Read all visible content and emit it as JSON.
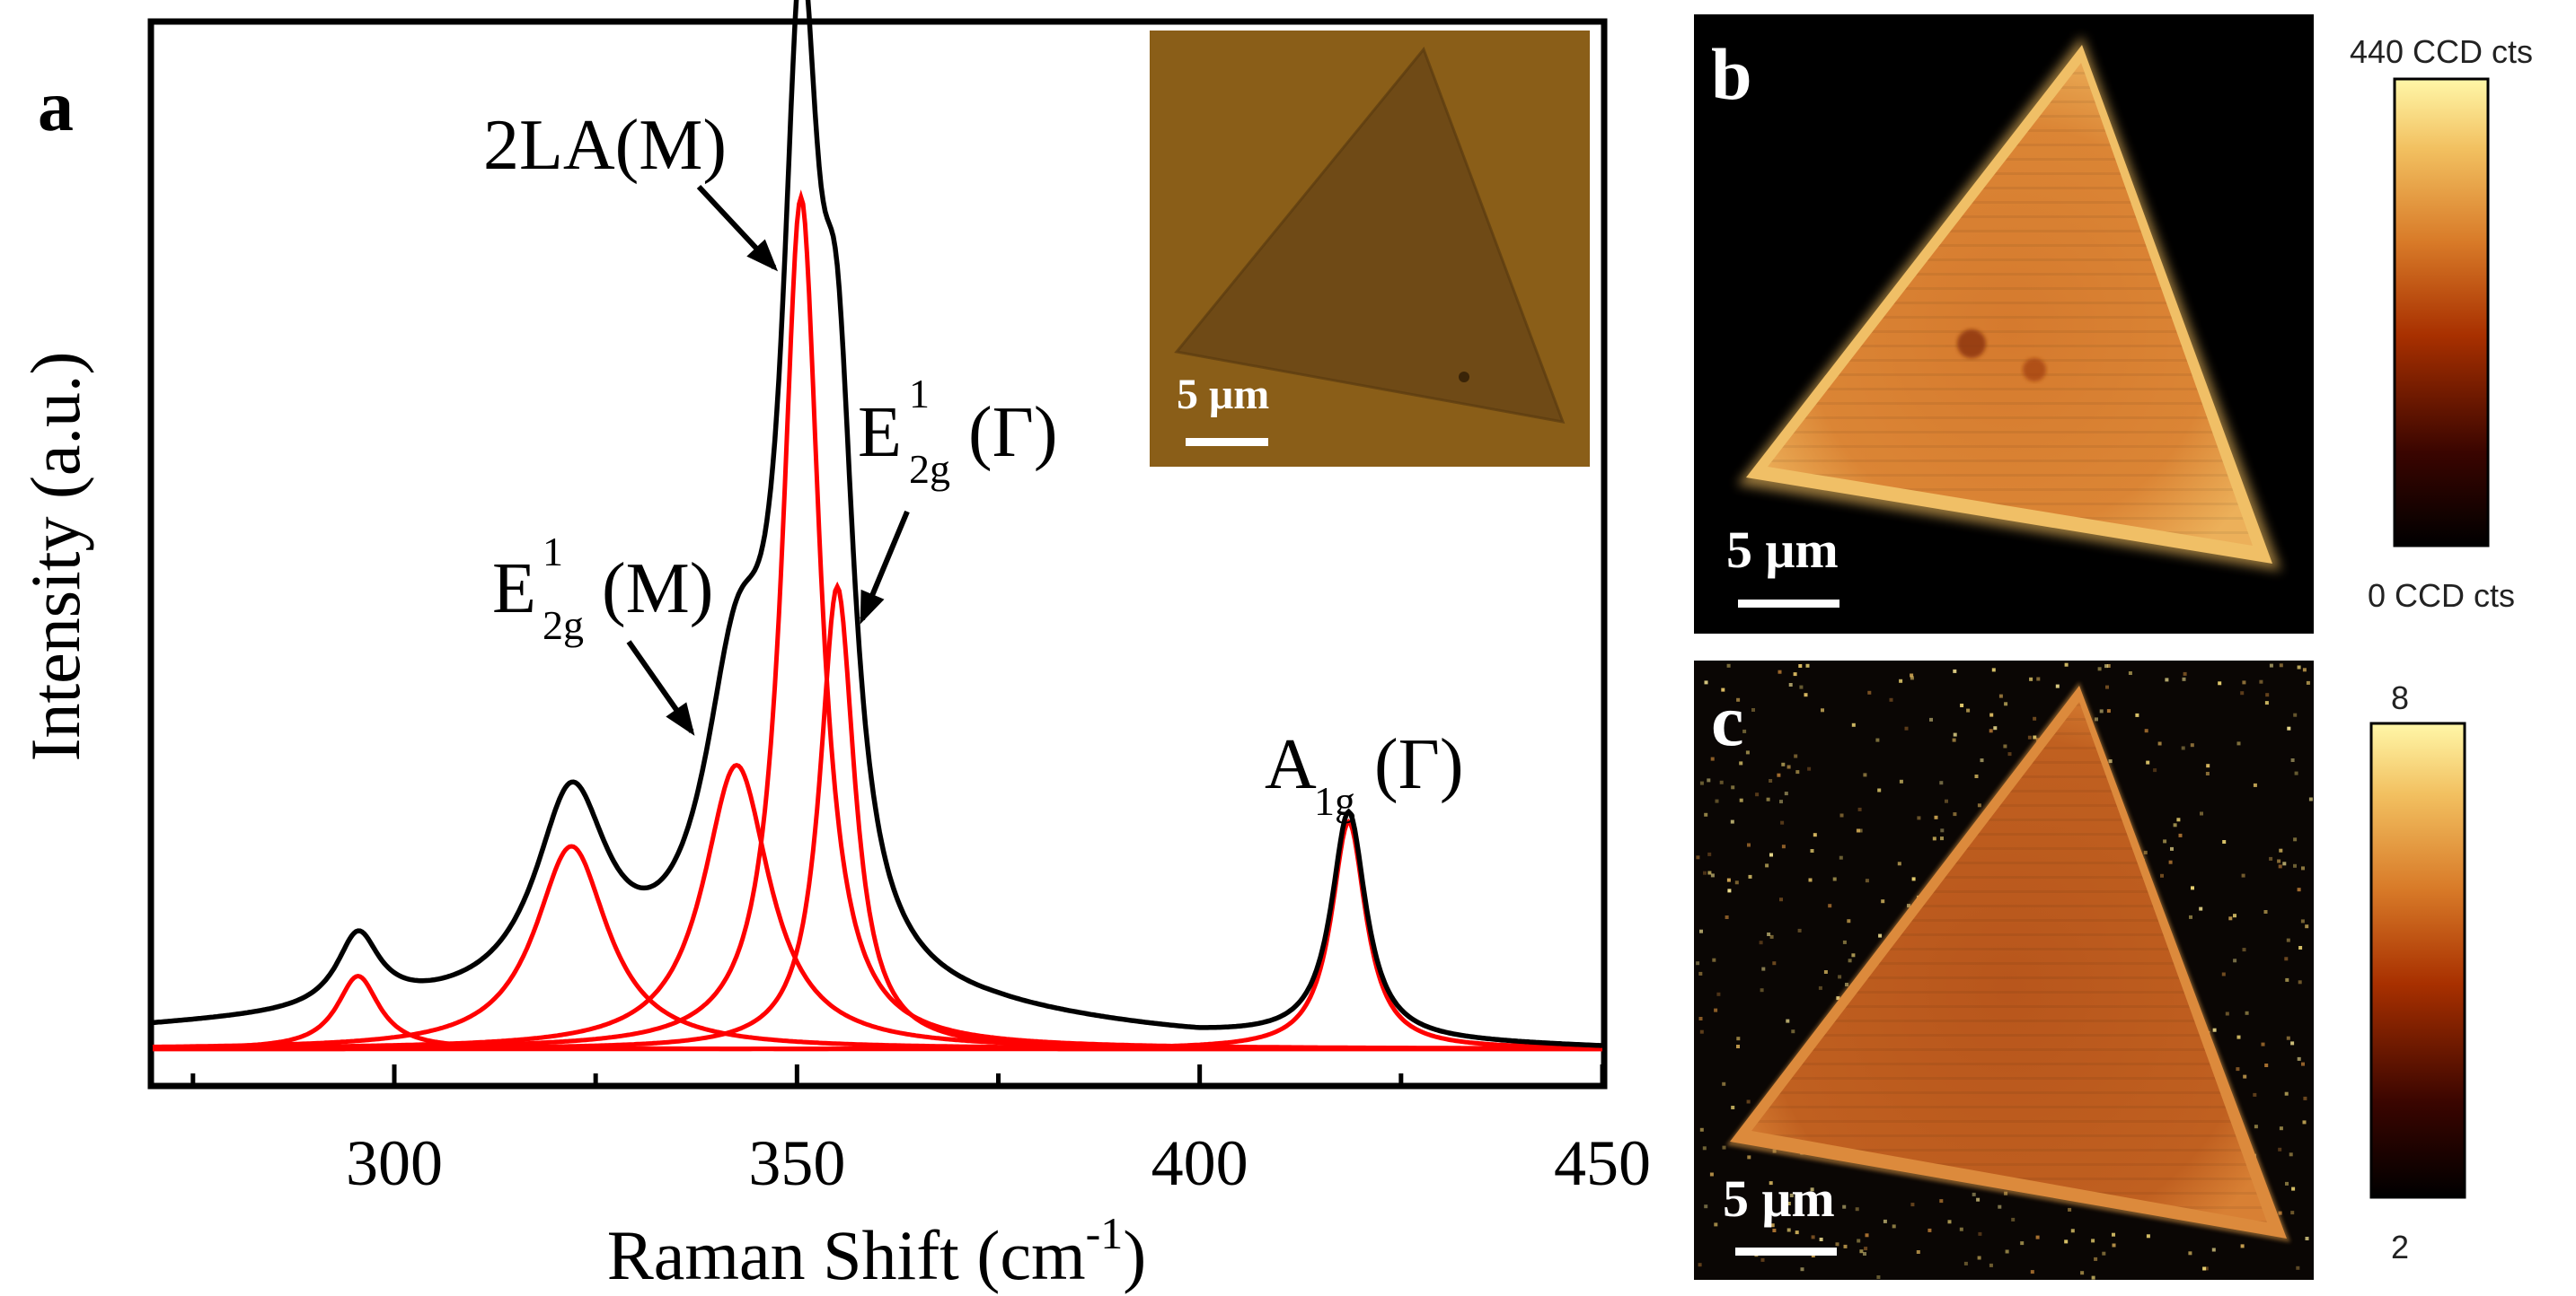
{
  "panels": {
    "a": "a",
    "b": "b",
    "c": "c"
  },
  "chart_data": {
    "type": "line",
    "title": "",
    "xlabel": "Raman Shift (cm",
    "xlabel_sup": "-1",
    "xlabel_close": ")",
    "ylabel": "Intensity (a.u.)",
    "xlim": [
      270,
      450
    ],
    "ylim": [
      0,
      1.25
    ],
    "xticks": [
      300,
      350,
      400,
      450
    ],
    "xminor": [
      275,
      325,
      375,
      425
    ],
    "measured": {
      "name": "measured spectrum",
      "color": "#000000",
      "baseline": [
        {
          "x": 270,
          "y": 0.025
        },
        {
          "x": 300,
          "y": 0.04
        },
        {
          "x": 350,
          "y": 0.05
        },
        {
          "x": 375,
          "y": 0.035
        },
        {
          "x": 400,
          "y": 0.012
        },
        {
          "x": 450,
          "y": 0.0
        }
      ]
    },
    "fits": [
      {
        "name": "peak 295",
        "center": 295.5,
        "amplitude": 0.09,
        "width": 3.2
      },
      {
        "name": "peak 322",
        "center": 322.0,
        "amplitude": 0.25,
        "width": 5.5
      },
      {
        "name": "E2g1(M)",
        "center": 342.5,
        "amplitude": 0.35,
        "width": 5.0
      },
      {
        "name": "2LA(M)",
        "center": 350.5,
        "amplitude": 1.05,
        "width": 2.8
      },
      {
        "name": "E2g1(Gamma)",
        "center": 355.0,
        "amplitude": 0.57,
        "width": 2.6
      },
      {
        "name": "A1g(Gamma)",
        "center": 418.5,
        "amplitude": 0.28,
        "width": 2.6
      }
    ],
    "fit_color": "#ff0000",
    "annotations": {
      "la": {
        "text": "2LA(M)",
        "target_x": 348.5
      },
      "e2g_m": {
        "main": "E",
        "sup": "1",
        "sub": "2g",
        "tail": "(M)",
        "target_x": 339.0
      },
      "e2g_g": {
        "main": "E",
        "sup": "1",
        "sub": "2g",
        "tail": "(Γ)",
        "target_x": 358.5
      },
      "a1g": {
        "main": "A",
        "sub": "1g",
        "tail": "(Γ)"
      }
    }
  },
  "inset": {
    "scale_label": "5 μm",
    "background_color": "#8a5e18"
  },
  "map_b": {
    "scale_label": "5 μm",
    "colorbar_max": "440 CCD cts",
    "colorbar_min": "0 CCD cts"
  },
  "map_c": {
    "scale_label": "5 μm",
    "colorbar_max": "8",
    "colorbar_min": "2"
  }
}
